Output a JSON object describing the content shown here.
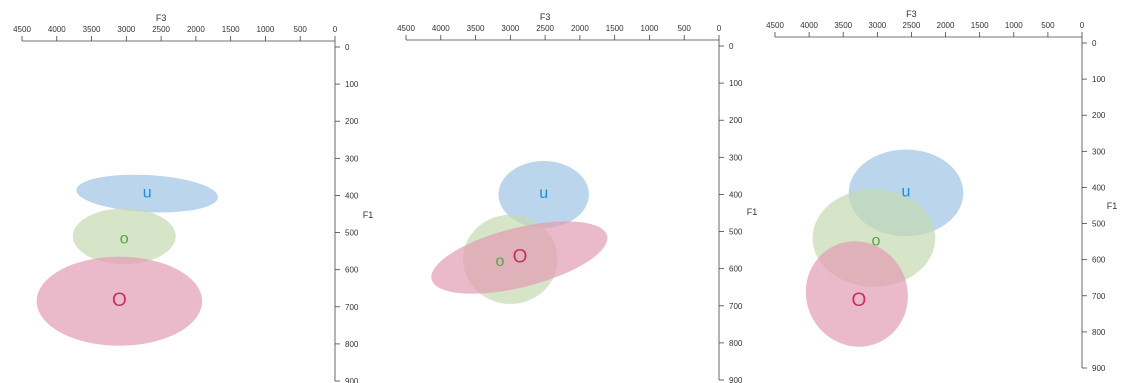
{
  "colors": {
    "u": "#1f8fd1",
    "o": "#5fa043",
    "O": "#cf2a63",
    "axis": "#444444"
  },
  "chart_data": [
    {
      "type": "scatter",
      "x_title": "F3",
      "y_title": "F1",
      "xlim": [
        4500,
        0
      ],
      "ylim": [
        0,
        900
      ],
      "x_ticks": [
        4500,
        4000,
        3500,
        3000,
        2500,
        2000,
        1500,
        1000,
        500,
        0
      ],
      "y_ticks": [
        0,
        100,
        200,
        300,
        400,
        500,
        600,
        700,
        800,
        900
      ],
      "series": [
        {
          "name": "u",
          "cx": 2700,
          "cy": 395,
          "rx": 1020,
          "ry": 50,
          "angle": 3,
          "fill": "#9cc3e4"
        },
        {
          "name": "o",
          "cx": 3030,
          "cy": 510,
          "rx": 740,
          "ry": 75,
          "angle": 0,
          "fill": "#c4d8b0"
        },
        {
          "name": "O",
          "cx": 3100,
          "cy": 685,
          "rx": 1190,
          "ry": 120,
          "angle": 0,
          "fill": "#e29db4"
        }
      ],
      "labels": [
        {
          "text": "u",
          "x": 2700,
          "y": 390,
          "color": "#1f8fd1",
          "size": 16
        },
        {
          "text": "o",
          "x": 3030,
          "y": 515,
          "color": "#5fa043",
          "size": 16
        },
        {
          "text": "O",
          "x": 3100,
          "y": 680,
          "color": "#cf2a63",
          "size": 19
        }
      ]
    },
    {
      "type": "scatter",
      "x_title": "F3",
      "y_title": "F1",
      "xlim": [
        4500,
        0
      ],
      "ylim": [
        0,
        900
      ],
      "x_ticks": [
        4500,
        4000,
        3500,
        3000,
        2500,
        2000,
        1500,
        1000,
        500,
        0
      ],
      "y_ticks": [
        0,
        100,
        200,
        300,
        400,
        500,
        600,
        700,
        800,
        900
      ],
      "series": [
        {
          "name": "u",
          "cx": 2520,
          "cy": 400,
          "rx": 650,
          "ry": 90,
          "angle": 0,
          "fill": "#9cc3e4"
        },
        {
          "name": "o",
          "cx": 3000,
          "cy": 575,
          "rx": 680,
          "ry": 120,
          "angle": 0,
          "fill": "#c4d8b0"
        },
        {
          "name": "O",
          "cx": 2870,
          "cy": 570,
          "rx": 1300,
          "ry": 80,
          "angle": -14,
          "fill": "#e29db4"
        }
      ],
      "labels": [
        {
          "text": "u",
          "x": 2520,
          "y": 395,
          "color": "#1f8fd1",
          "size": 16
        },
        {
          "text": "o",
          "x": 3150,
          "y": 578,
          "color": "#5fa043",
          "size": 16
        },
        {
          "text": "O",
          "x": 2860,
          "y": 565,
          "color": "#cf2a63",
          "size": 19
        }
      ]
    },
    {
      "type": "scatter",
      "x_title": "F3",
      "y_title": "F1",
      "xlim": [
        4500,
        0
      ],
      "ylim": [
        0,
        900
      ],
      "x_ticks": [
        4500,
        4000,
        3500,
        3000,
        2500,
        2000,
        1500,
        1000,
        500,
        0
      ],
      "y_ticks": [
        0,
        100,
        200,
        300,
        400,
        500,
        600,
        700,
        800,
        900
      ],
      "series": [
        {
          "name": "u",
          "cx": 2580,
          "cy": 415,
          "rx": 840,
          "ry": 120,
          "angle": 0,
          "fill": "#9cc3e4"
        },
        {
          "name": "o",
          "cx": 3050,
          "cy": 540,
          "rx": 900,
          "ry": 135,
          "angle": 0,
          "fill": "#c4d8b0"
        },
        {
          "name": "O",
          "cx": 3300,
          "cy": 695,
          "rx": 780,
          "ry": 140,
          "angle": 65,
          "fill": "#e29db4"
        }
      ],
      "labels": [
        {
          "text": "u",
          "x": 2580,
          "y": 410,
          "color": "#1f8fd1",
          "size": 16
        },
        {
          "text": "o",
          "x": 3020,
          "y": 545,
          "color": "#5fa043",
          "size": 16
        },
        {
          "text": "O",
          "x": 3270,
          "y": 710,
          "color": "#cf2a63",
          "size": 19
        }
      ]
    }
  ]
}
